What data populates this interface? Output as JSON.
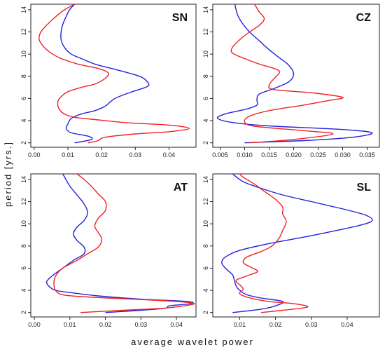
{
  "xlabel": "average wavelet power",
  "ylabel": "period [yrs.]",
  "colors": {
    "series_a": "#2222dd",
    "series_b": "#ee2222"
  },
  "chart_data": [
    {
      "type": "line",
      "panel_label": "SN",
      "xlim": [
        -0.001,
        0.048
      ],
      "ylim": [
        1.6,
        14.5
      ],
      "xticks": [
        0.0,
        0.01,
        0.02,
        0.03,
        0.04
      ],
      "xtick_labels": [
        "0.00",
        "0.01",
        "0.02",
        "0.03",
        "0.04"
      ],
      "yticks": [
        2,
        4,
        6,
        8,
        10,
        12,
        14
      ],
      "series": [
        {
          "color": "blue",
          "points": [
            [
              0.012,
              2.0
            ],
            [
              0.017,
              2.3
            ],
            [
              0.016,
              2.6
            ],
            [
              0.011,
              2.9
            ],
            [
              0.0095,
              3.3
            ],
            [
              0.01,
              3.7
            ],
            [
              0.011,
              4.2
            ],
            [
              0.014,
              4.6
            ],
            [
              0.018,
              4.9
            ],
            [
              0.021,
              5.3
            ],
            [
              0.024,
              6.0
            ],
            [
              0.029,
              6.6
            ],
            [
              0.033,
              7.0
            ],
            [
              0.034,
              7.3
            ],
            [
              0.032,
              7.9
            ],
            [
              0.028,
              8.3
            ],
            [
              0.023,
              8.7
            ],
            [
              0.018,
              9.1
            ],
            [
              0.014,
              9.6
            ],
            [
              0.011,
              10.0
            ],
            [
              0.009,
              10.6
            ],
            [
              0.008,
              11.3
            ],
            [
              0.008,
              12.0
            ],
            [
              0.0085,
              12.7
            ],
            [
              0.0095,
              13.4
            ],
            [
              0.0105,
              14.0
            ],
            [
              0.012,
              14.5
            ]
          ]
        },
        {
          "color": "red",
          "points": [
            [
              0.016,
              2.0
            ],
            [
              0.019,
              2.2
            ],
            [
              0.021,
              2.5
            ],
            [
              0.03,
              2.8
            ],
            [
              0.04,
              3.0
            ],
            [
              0.046,
              3.3
            ],
            [
              0.04,
              3.6
            ],
            [
              0.028,
              3.8
            ],
            [
              0.018,
              4.1
            ],
            [
              0.012,
              4.3
            ],
            [
              0.009,
              4.6
            ],
            [
              0.0075,
              5.0
            ],
            [
              0.007,
              5.5
            ],
            [
              0.0075,
              6.0
            ],
            [
              0.01,
              6.6
            ],
            [
              0.014,
              7.0
            ],
            [
              0.018,
              7.3
            ],
            [
              0.021,
              7.8
            ],
            [
              0.022,
              8.3
            ],
            [
              0.019,
              8.7
            ],
            [
              0.013,
              9.1
            ],
            [
              0.008,
              9.6
            ],
            [
              0.005,
              10.1
            ],
            [
              0.003,
              10.6
            ],
            [
              0.0015,
              11.3
            ],
            [
              0.002,
              12.0
            ],
            [
              0.004,
              12.7
            ],
            [
              0.0065,
              13.4
            ],
            [
              0.009,
              14.0
            ],
            [
              0.012,
              14.5
            ]
          ]
        }
      ]
    },
    {
      "type": "line",
      "panel_label": "CZ",
      "xlim": [
        0.0035,
        0.0375
      ],
      "ylim": [
        1.6,
        14.5
      ],
      "xticks": [
        0.005,
        0.01,
        0.015,
        0.02,
        0.025,
        0.03,
        0.035
      ],
      "xtick_labels": [
        "0.005",
        "0.010",
        "0.015",
        "0.020",
        "0.025",
        "0.030",
        "0.035"
      ],
      "yticks": [
        2,
        4,
        6,
        8,
        10,
        12,
        14
      ],
      "series": [
        {
          "color": "blue",
          "points": [
            [
              0.01,
              2.0
            ],
            [
              0.022,
              2.2
            ],
            [
              0.032,
              2.5
            ],
            [
              0.036,
              2.9
            ],
            [
              0.03,
              3.2
            ],
            [
              0.016,
              3.5
            ],
            [
              0.008,
              3.8
            ],
            [
              0.0045,
              4.2
            ],
            [
              0.006,
              4.6
            ],
            [
              0.01,
              5.0
            ],
            [
              0.0125,
              5.4
            ],
            [
              0.0125,
              5.9
            ],
            [
              0.013,
              6.4
            ],
            [
              0.016,
              6.9
            ],
            [
              0.019,
              7.5
            ],
            [
              0.02,
              8.2
            ],
            [
              0.019,
              9.0
            ],
            [
              0.017,
              9.7
            ],
            [
              0.015,
              10.4
            ],
            [
              0.013,
              11.2
            ],
            [
              0.011,
              12.0
            ],
            [
              0.0095,
              12.8
            ],
            [
              0.0085,
              13.6
            ],
            [
              0.008,
              14.5
            ]
          ]
        },
        {
          "color": "red",
          "points": [
            [
              0.011,
              2.0
            ],
            [
              0.02,
              2.3
            ],
            [
              0.028,
              2.8
            ],
            [
              0.022,
              3.1
            ],
            [
              0.012,
              3.5
            ],
            [
              0.01,
              3.9
            ],
            [
              0.011,
              4.4
            ],
            [
              0.015,
              4.9
            ],
            [
              0.022,
              5.4
            ],
            [
              0.027,
              5.8
            ],
            [
              0.03,
              6.1
            ],
            [
              0.024,
              6.5
            ],
            [
              0.016,
              6.8
            ],
            [
              0.015,
              7.2
            ],
            [
              0.016,
              7.8
            ],
            [
              0.017,
              8.5
            ],
            [
              0.013,
              9.1
            ],
            [
              0.01,
              9.6
            ],
            [
              0.0075,
              10.1
            ],
            [
              0.0075,
              10.6
            ],
            [
              0.009,
              11.3
            ],
            [
              0.011,
              12.0
            ],
            [
              0.013,
              12.6
            ],
            [
              0.014,
              13.2
            ],
            [
              0.013,
              13.8
            ],
            [
              0.012,
              14.5
            ]
          ]
        }
      ]
    },
    {
      "type": "line",
      "panel_label": "AT",
      "xlim": [
        -0.001,
        0.0455
      ],
      "ylim": [
        1.6,
        14.5
      ],
      "xticks": [
        0.0,
        0.01,
        0.02,
        0.03,
        0.04
      ],
      "xtick_labels": [
        "0.00",
        "0.01",
        "0.02",
        "0.03",
        "0.04"
      ],
      "yticks": [
        2,
        4,
        6,
        8,
        10,
        12,
        14
      ],
      "series": [
        {
          "color": "blue",
          "points": [
            [
              0.02,
              2.0
            ],
            [
              0.03,
              2.2
            ],
            [
              0.037,
              2.4
            ],
            [
              0.038,
              2.6
            ],
            [
              0.044,
              2.8
            ],
            [
              0.043,
              3.0
            ],
            [
              0.03,
              3.2
            ],
            [
              0.018,
              3.5
            ],
            [
              0.01,
              3.8
            ],
            [
              0.006,
              4.0
            ],
            [
              0.004,
              4.4
            ],
            [
              0.0035,
              4.8
            ],
            [
              0.005,
              5.3
            ],
            [
              0.008,
              6.0
            ],
            [
              0.011,
              6.7
            ],
            [
              0.014,
              7.3
            ],
            [
              0.014,
              7.9
            ],
            [
              0.012,
              8.5
            ],
            [
              0.011,
              9.1
            ],
            [
              0.012,
              9.7
            ],
            [
              0.014,
              10.3
            ],
            [
              0.015,
              11.0
            ],
            [
              0.014,
              11.8
            ],
            [
              0.012,
              12.6
            ],
            [
              0.01,
              13.4
            ],
            [
              0.008,
              14.5
            ]
          ]
        },
        {
          "color": "red",
          "points": [
            [
              0.013,
              2.0
            ],
            [
              0.025,
              2.2
            ],
            [
              0.037,
              2.4
            ],
            [
              0.042,
              2.6
            ],
            [
              0.045,
              2.8
            ],
            [
              0.04,
              3.0
            ],
            [
              0.028,
              3.2
            ],
            [
              0.015,
              3.4
            ],
            [
              0.008,
              3.6
            ],
            [
              0.006,
              4.0
            ],
            [
              0.0055,
              4.6
            ],
            [
              0.006,
              5.3
            ],
            [
              0.008,
              6.0
            ],
            [
              0.012,
              6.7
            ],
            [
              0.015,
              7.3
            ],
            [
              0.018,
              7.9
            ],
            [
              0.019,
              8.6
            ],
            [
              0.018,
              9.2
            ],
            [
              0.017,
              9.8
            ],
            [
              0.018,
              10.5
            ],
            [
              0.02,
              11.2
            ],
            [
              0.02,
              12.0
            ],
            [
              0.018,
              12.7
            ],
            [
              0.016,
              13.4
            ],
            [
              0.014,
              14.0
            ],
            [
              0.012,
              14.5
            ]
          ]
        }
      ]
    },
    {
      "type": "line",
      "panel_label": "SL",
      "xlim": [
        0.0025,
        0.049
      ],
      "ylim": [
        1.6,
        14.5
      ],
      "xticks": [
        0.01,
        0.02,
        0.03,
        0.04
      ],
      "xtick_labels": [
        "0.01",
        "0.02",
        "0.03",
        "0.04"
      ],
      "yticks": [
        2,
        4,
        6,
        8,
        10,
        12,
        14
      ],
      "series": [
        {
          "color": "blue",
          "points": [
            [
              0.008,
              2.0
            ],
            [
              0.016,
              2.3
            ],
            [
              0.02,
              2.6
            ],
            [
              0.022,
              3.0
            ],
            [
              0.016,
              3.3
            ],
            [
              0.012,
              3.6
            ],
            [
              0.01,
              4.0
            ],
            [
              0.009,
              4.4
            ],
            [
              0.0085,
              4.9
            ],
            [
              0.008,
              5.4
            ],
            [
              0.006,
              6.0
            ],
            [
              0.005,
              6.5
            ],
            [
              0.006,
              7.0
            ],
            [
              0.01,
              7.6
            ],
            [
              0.018,
              8.2
            ],
            [
              0.028,
              8.8
            ],
            [
              0.037,
              9.4
            ],
            [
              0.044,
              9.9
            ],
            [
              0.047,
              10.3
            ],
            [
              0.045,
              10.8
            ],
            [
              0.038,
              11.4
            ],
            [
              0.03,
              12.0
            ],
            [
              0.022,
              12.6
            ],
            [
              0.016,
              13.2
            ],
            [
              0.011,
              13.8
            ],
            [
              0.008,
              14.5
            ]
          ]
        },
        {
          "color": "red",
          "points": [
            [
              0.016,
              2.0
            ],
            [
              0.022,
              2.2
            ],
            [
              0.029,
              2.5
            ],
            [
              0.025,
              2.8
            ],
            [
              0.018,
              3.0
            ],
            [
              0.013,
              3.3
            ],
            [
              0.01,
              3.7
            ],
            [
              0.011,
              4.1
            ],
            [
              0.01,
              4.5
            ],
            [
              0.009,
              4.9
            ],
            [
              0.012,
              5.3
            ],
            [
              0.015,
              5.7
            ],
            [
              0.013,
              6.1
            ],
            [
              0.011,
              6.5
            ],
            [
              0.012,
              7.0
            ],
            [
              0.016,
              7.5
            ],
            [
              0.019,
              8.0
            ],
            [
              0.021,
              8.7
            ],
            [
              0.022,
              9.4
            ],
            [
              0.023,
              10.2
            ],
            [
              0.022,
              10.9
            ],
            [
              0.022,
              11.5
            ],
            [
              0.02,
              12.2
            ],
            [
              0.017,
              12.9
            ],
            [
              0.014,
              13.6
            ],
            [
              0.011,
              14.2
            ],
            [
              0.01,
              14.5
            ]
          ]
        }
      ]
    }
  ]
}
